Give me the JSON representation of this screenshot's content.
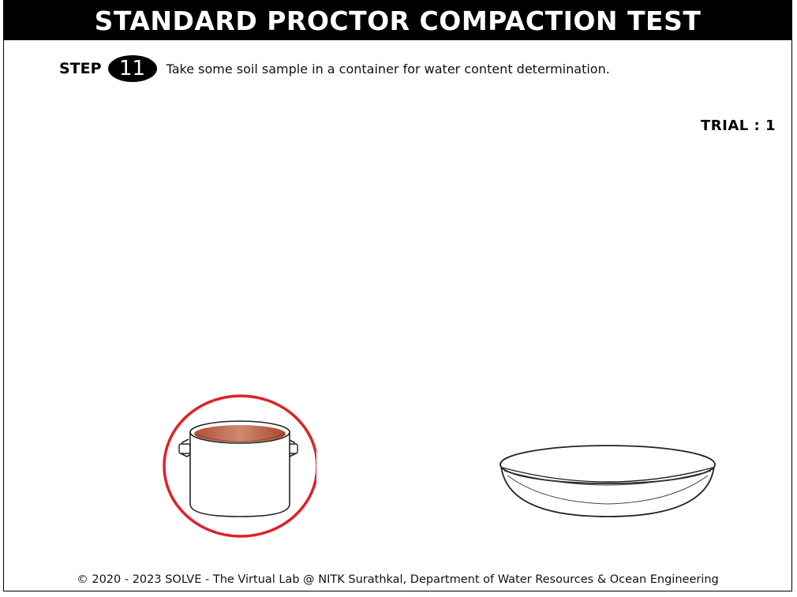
{
  "header": {
    "title": "STANDARD PROCTOR COMPACTION TEST"
  },
  "step": {
    "label": "STEP",
    "number": "11",
    "instruction": "Take some soil sample in a container for water content determination."
  },
  "trial": {
    "text": "TRIAL : 1"
  },
  "scene": {
    "container_icon": "soil-container-icon",
    "bowl_icon": "mixing-bowl-icon",
    "highlight_color": "#e0202a",
    "soil_color": "#b85c44"
  },
  "footer": {
    "text": "© 2020 - 2023 SOLVE - The Virtual Lab @ NITK Surathkal, Department of Water Resources & Ocean Engineering"
  }
}
